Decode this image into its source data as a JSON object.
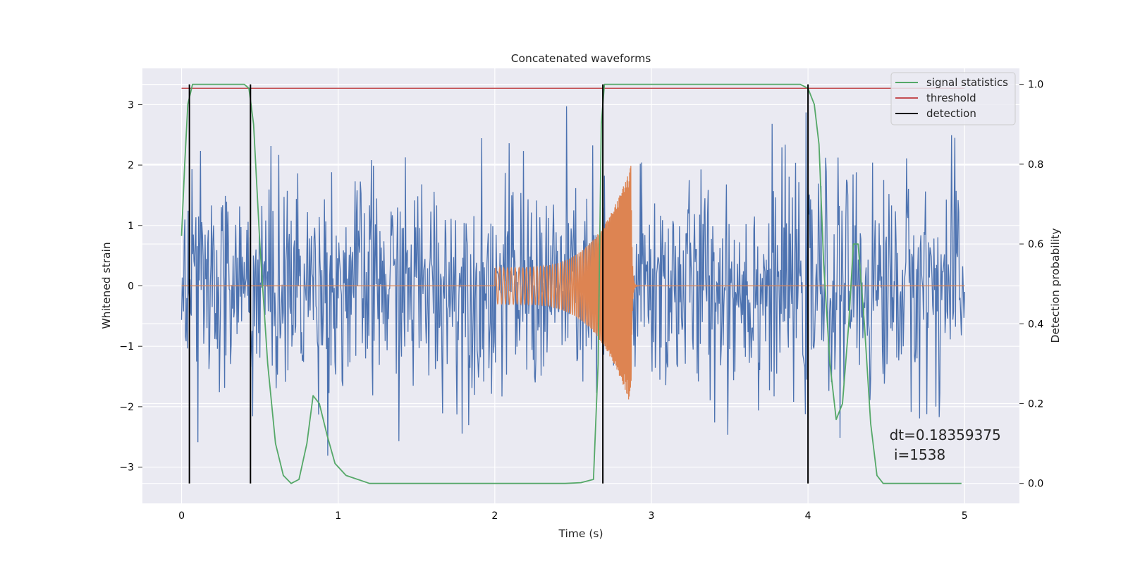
{
  "chart_data": {
    "type": "line",
    "title": "Concatenated waveforms",
    "xlabel": "Time (s)",
    "ylabel_left": "Whitened strain",
    "ylabel_right": "Detection probability",
    "xlim": [
      -0.25,
      5.35
    ],
    "ylim_left": [
      -3.6,
      3.6
    ],
    "ylim_right": [
      -0.05,
      1.04
    ],
    "x_ticks": [
      0,
      1,
      2,
      3,
      4,
      5
    ],
    "y_ticks_left": [
      -3,
      -2,
      -1,
      0,
      1,
      2,
      3
    ],
    "y_ticks_right": [
      0.0,
      0.2,
      0.4,
      0.6,
      0.8,
      1.0
    ],
    "y_tick_labels_left": [
      "−3",
      "−2",
      "−1",
      "0",
      "1",
      "2",
      "3"
    ],
    "y_tick_labels_right": [
      "0.0",
      "0.2",
      "0.4",
      "0.6",
      "0.8",
      "1.0"
    ],
    "grid": true,
    "legend_position": "top-right",
    "legend": [
      "signal statistics",
      "threshold",
      "detection"
    ],
    "colors": {
      "strain": "#4c72b0",
      "waveform": "#dd8452",
      "signal_statistics": "#55a868",
      "threshold": "#c44e52",
      "detection": "#000000",
      "axes_bg": "#eaeaf2",
      "grid": "#ffffff"
    },
    "strain": {
      "x_range": [
        0,
        5
      ],
      "n_points": 1200,
      "std": 0.9,
      "max": 3.2,
      "min": -3.1
    },
    "waveform": {
      "x_start": 2.0,
      "x_merger": 2.87,
      "x_end": 3.0,
      "amp_start": 0.3,
      "amp_peak": 2.0,
      "freq_start": 40,
      "freq_end": 250
    },
    "threshold": {
      "value": 0.99,
      "x_range": [
        0,
        5
      ]
    },
    "detections": [
      0.05,
      0.44,
      2.69,
      4.0
    ],
    "signal_statistics": [
      [
        0.0,
        0.62
      ],
      [
        0.02,
        0.8
      ],
      [
        0.04,
        0.95
      ],
      [
        0.07,
        1.0
      ],
      [
        0.4,
        1.0
      ],
      [
        0.43,
        0.99
      ],
      [
        0.46,
        0.9
      ],
      [
        0.5,
        0.6
      ],
      [
        0.55,
        0.3
      ],
      [
        0.6,
        0.1
      ],
      [
        0.65,
        0.02
      ],
      [
        0.7,
        0.0
      ],
      [
        0.75,
        0.01
      ],
      [
        0.8,
        0.1
      ],
      [
        0.84,
        0.22
      ],
      [
        0.88,
        0.2
      ],
      [
        0.93,
        0.12
      ],
      [
        0.98,
        0.05
      ],
      [
        1.05,
        0.02
      ],
      [
        1.2,
        0.0
      ],
      [
        2.45,
        0.0
      ],
      [
        2.55,
        0.002
      ],
      [
        2.63,
        0.01
      ],
      [
        2.66,
        0.3
      ],
      [
        2.68,
        0.9
      ],
      [
        2.7,
        1.0
      ],
      [
        3.95,
        1.0
      ],
      [
        4.0,
        0.99
      ],
      [
        4.04,
        0.95
      ],
      [
        4.07,
        0.85
      ],
      [
        4.1,
        0.55
      ],
      [
        4.14,
        0.3
      ],
      [
        4.18,
        0.16
      ],
      [
        4.22,
        0.2
      ],
      [
        4.26,
        0.4
      ],
      [
        4.29,
        0.6
      ],
      [
        4.32,
        0.6
      ],
      [
        4.36,
        0.4
      ],
      [
        4.4,
        0.15
      ],
      [
        4.44,
        0.02
      ],
      [
        4.48,
        0.0
      ],
      [
        4.98,
        0.0
      ]
    ],
    "annotation": {
      "line1": "dt=0.18359375",
      "line2": " i=1538",
      "x": 4.52,
      "y": -2.55
    }
  }
}
